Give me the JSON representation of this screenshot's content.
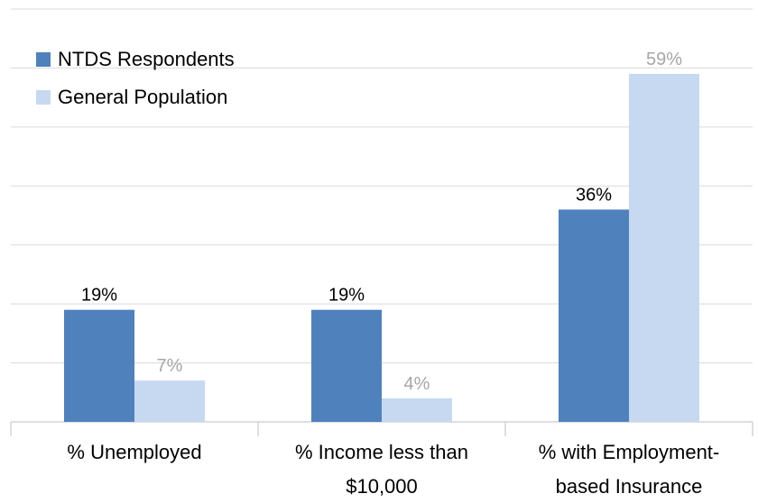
{
  "chart_data": {
    "type": "bar",
    "categories": [
      "% Unemployed",
      "% Income less than $10,000",
      "% with Employment-based Insurance"
    ],
    "category_lines": [
      [
        "% Unemployed"
      ],
      [
        "% Income less than",
        "$10,000"
      ],
      [
        "% with Employment-",
        "based Insurance"
      ]
    ],
    "series": [
      {
        "name": "NTDS Respondents",
        "values": [
          19,
          19,
          36
        ],
        "labels": [
          "19%",
          "19%",
          "36%"
        ],
        "color": "#4f81bd",
        "label_color": "#000000"
      },
      {
        "name": "General Population",
        "values": [
          7,
          4,
          59
        ],
        "labels": [
          "7%",
          "4%",
          "59%"
        ],
        "color": "#c6d9f1",
        "label_color": "#a6a6a6"
      }
    ],
    "ylim": [
      0,
      70
    ],
    "grid": true,
    "legend": "top-left",
    "xlabel": "",
    "ylabel": ""
  }
}
